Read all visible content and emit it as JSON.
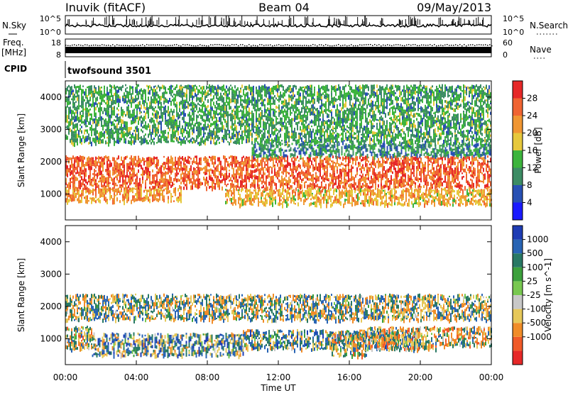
{
  "header": {
    "station": "Inuvik (fitACF)",
    "beam": "Beam 04",
    "date": "09/May/2013"
  },
  "sky_panel": {
    "left_label": "N.Sky",
    "left_ticks": [
      "10^5",
      "10^0"
    ],
    "right_ticks": [
      "10^5",
      "10^0"
    ],
    "right_label": "N.Search"
  },
  "freq_panel": {
    "left_label_1": "Freq.",
    "left_label_2": "[MHz]",
    "left_ticks": [
      "18",
      "8"
    ],
    "right_ticks": [
      "60",
      "0"
    ],
    "right_label": "Nave"
  },
  "cpid": {
    "label": "CPID",
    "value": "twofsound 3501"
  },
  "x_axis": {
    "label": "Time UT",
    "ticks": [
      "00:00",
      "04:00",
      "08:00",
      "12:00",
      "16:00",
      "20:00",
      "00:00"
    ]
  },
  "colors": {
    "power_scale": [
      "#1a1aff",
      "#2850b4",
      "#3c8c64",
      "#3cb43c",
      "#e6c83c",
      "#f09632",
      "#f06432",
      "#e62828"
    ],
    "velocity_scale": [
      "#e62828",
      "#f05a28",
      "#f08c28",
      "#e6c85a",
      "#c8c8c8",
      "#78c850",
      "#3ca03c",
      "#287864",
      "#2864b4",
      "#1e3cb4"
    ]
  },
  "chart_data": [
    {
      "type": "heatmap",
      "panel": "power",
      "xlabel": "Time UT",
      "ylabel": "Slant Range [km]",
      "xlim_hours": [
        0,
        24
      ],
      "ylim": [
        200,
        4500
      ],
      "yticks": [
        "1000",
        "2000",
        "3000",
        "4000"
      ],
      "colorbar": {
        "label": "Power [dB]",
        "ticks": [
          "28",
          "24",
          "20",
          "16",
          "12",
          "8",
          "4"
        ],
        "range": [
          0,
          32
        ]
      },
      "bands": [
        {
          "start_h": 0.0,
          "end_h": 24.0,
          "range_low": 1200,
          "range_high": 2200,
          "value_db": 26
        },
        {
          "start_h": 0.0,
          "end_h": 6.5,
          "range_low": 800,
          "range_high": 1200,
          "value_db": 22
        },
        {
          "start_h": 9.0,
          "end_h": 24.0,
          "range_low": 700,
          "range_high": 1200,
          "value_db": 20
        },
        {
          "start_h": 10.5,
          "end_h": 24.0,
          "range_low": 2200,
          "range_high": 2600,
          "value_db": 10
        },
        {
          "start_h": 0.0,
          "end_h": 24.0,
          "range_low": 2600,
          "range_high": 4400,
          "value_db": 12
        }
      ]
    },
    {
      "type": "heatmap",
      "panel": "velocity",
      "xlabel": "Time UT",
      "ylabel": "Slant Range [km]",
      "xlim_hours": [
        0,
        24
      ],
      "ylim": [
        200,
        4500
      ],
      "yticks": [
        "1000",
        "2000",
        "3000",
        "4000"
      ],
      "colorbar": {
        "label": "Velocity [m s^-1]",
        "ticks": [
          "1000",
          "500",
          "100",
          "25",
          "-25",
          "-100",
          "-500",
          "-1000"
        ]
      },
      "bands": [
        {
          "start_h": 0.0,
          "end_h": 24.0,
          "range_low": 1600,
          "range_high": 2400,
          "value_ms": 0
        },
        {
          "start_h": 0.0,
          "end_h": 1.5,
          "range_low": 700,
          "range_high": 1400,
          "value_ms": -300
        },
        {
          "start_h": 1.5,
          "end_h": 10.0,
          "range_low": 500,
          "range_high": 1200,
          "value_ms": 300
        },
        {
          "start_h": 10.0,
          "end_h": 20.0,
          "range_low": 700,
          "range_high": 1300,
          "value_ms": 150
        },
        {
          "start_h": 15.0,
          "end_h": 17.0,
          "range_low": 500,
          "range_high": 1200,
          "value_ms": -300
        },
        {
          "start_h": 17.0,
          "end_h": 21.0,
          "range_low": 700,
          "range_high": 1400,
          "value_ms": -300
        },
        {
          "start_h": 21.0,
          "end_h": 24.0,
          "range_low": 800,
          "range_high": 1400,
          "value_ms": -300
        }
      ]
    }
  ]
}
